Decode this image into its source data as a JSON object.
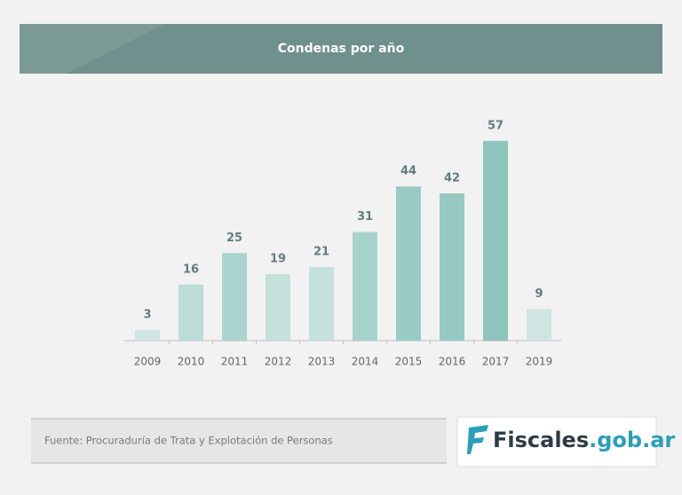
{
  "chart_data": {
    "type": "bar",
    "title": "Condenas por año",
    "categories": [
      "2009",
      "2010",
      "2011",
      "2012",
      "2013",
      "2014",
      "2015",
      "2016",
      "2017",
      "2019"
    ],
    "values": [
      3,
      16,
      25,
      19,
      21,
      31,
      44,
      42,
      57,
      9
    ],
    "colors": [
      "#cfe5e1",
      "#bbdcd7",
      "#aad4cd",
      "#c5e1dc",
      "#c5e1dc",
      "#a7d3cc",
      "#9acbc3",
      "#96c9c1",
      "#8dc4bb",
      "#cfe5e1"
    ],
    "source": "Fuente: Procuraduría de Trata y Explotación de Personas"
  },
  "logo": {
    "name": "Fiscales",
    "domain": ".gob.ar"
  }
}
